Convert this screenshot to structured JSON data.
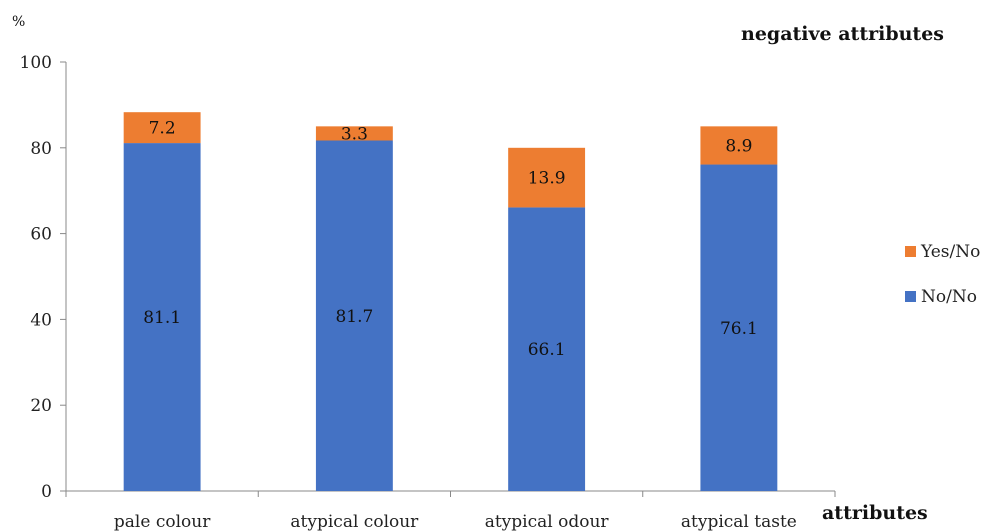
{
  "chart_data": {
    "type": "bar",
    "stacked": true,
    "title": "negative attributes",
    "ylabel": "%",
    "xlabel": "attributes",
    "ylim": [
      0,
      100
    ],
    "yticks": [
      0,
      20,
      40,
      60,
      80,
      100
    ],
    "categories": [
      "pale colour",
      "atypical colour",
      "atypical odour",
      "atypical taste"
    ],
    "series": [
      {
        "name": "No/No",
        "values": [
          81.1,
          81.7,
          66.1,
          76.1
        ],
        "color": "#4472C4"
      },
      {
        "name": "Yes/No",
        "values": [
          7.2,
          3.3,
          13.9,
          8.9
        ],
        "color": "#ED7D31"
      }
    ],
    "legend_order": [
      "Yes/No",
      "No/No"
    ],
    "legend_position": "right",
    "grid": false
  }
}
